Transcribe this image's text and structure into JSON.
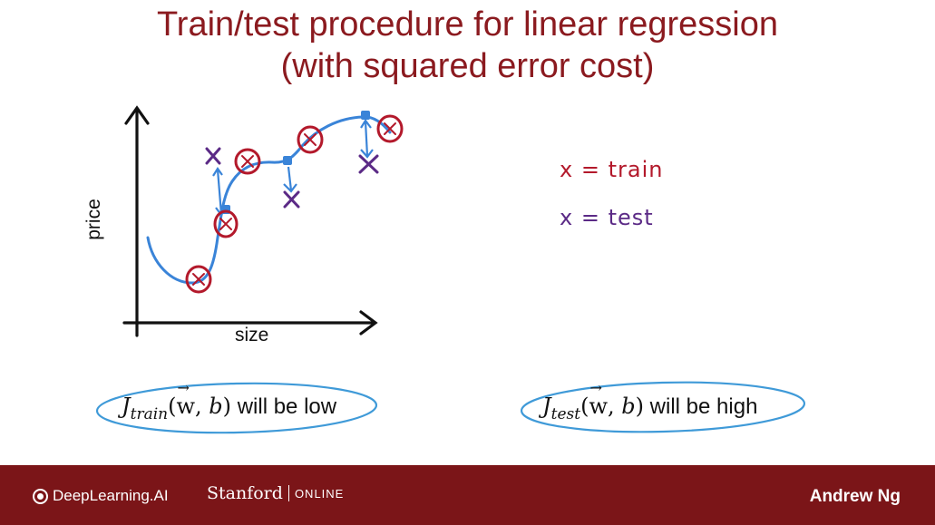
{
  "slide": {
    "title_line1": "Train/test procedure for linear regression",
    "title_line2": "(with squared error cost)"
  },
  "plot": {
    "ylabel": "price",
    "xlabel": "size"
  },
  "legend": {
    "train_symbol": "x",
    "train_eq": "=",
    "train_label": "train",
    "test_symbol": "x",
    "test_eq": "=",
    "test_label": "test"
  },
  "formulas": {
    "train_J": "J",
    "train_sub": "train",
    "train_args_open": "(",
    "train_w": "w",
    "train_args_rest": ", ",
    "train_b": "b",
    "train_close": ")",
    "train_tail": " will be low",
    "test_J": "J",
    "test_sub": "test",
    "test_args_open": "(",
    "test_w": "w",
    "test_args_rest": ", ",
    "test_b": "b",
    "test_close": ")",
    "test_tail": " will be high"
  },
  "footer": {
    "brand": "DeepLearning.AI",
    "partner": "Stanford",
    "partner_suffix": "ONLINE",
    "author": "Andrew Ng"
  },
  "colors": {
    "title": "#8b1a1f",
    "train": "#b3192b",
    "test": "#5b2a86",
    "curve": "#3a84d8",
    "ellipse": "#3f9ad8",
    "footer": "#7b1518"
  },
  "icons": [
    "deeplearning-logo-icon",
    "axis-arrow-icon",
    "train-x-marker",
    "test-x-marker"
  ]
}
